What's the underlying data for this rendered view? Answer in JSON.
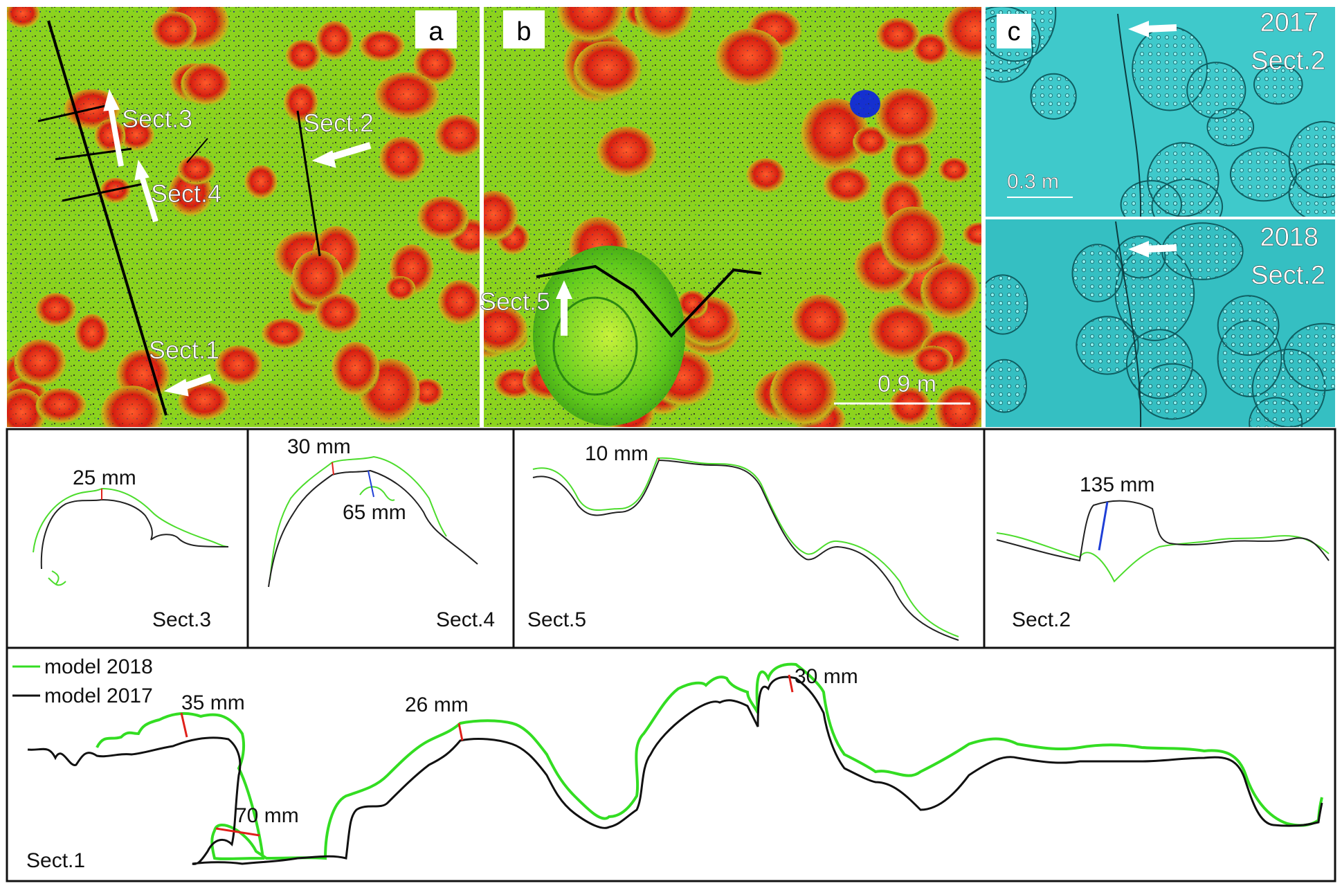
{
  "panels": {
    "a": {
      "letter": "a",
      "labels": [
        "Sect.3",
        "Sect.2",
        "Sect.4",
        "Sect.1"
      ]
    },
    "b": {
      "letter": "b",
      "labels": [
        "Sect.5"
      ],
      "scale": "0.9 m"
    },
    "c": {
      "letter": "c",
      "top_year": "2017",
      "top_section": "Sect.2",
      "bottom_year": "2018",
      "bottom_section": "Sect.2",
      "scale": "0.3 m"
    }
  },
  "profiles": {
    "sect3": {
      "label": "Sect.3",
      "measurements": [
        "25 mm"
      ]
    },
    "sect4": {
      "label": "Sect.4",
      "measurements": [
        "30 mm",
        "65 mm"
      ]
    },
    "sect5": {
      "label": "Sect.5",
      "measurements": [
        "10 mm"
      ]
    },
    "sect2": {
      "label": "Sect.2",
      "measurements": [
        "135 mm"
      ]
    },
    "sect1": {
      "label": "Sect.1",
      "measurements": [
        "35 mm",
        "26 mm",
        "70 mm",
        "30 mm"
      ]
    }
  },
  "legend": [
    {
      "label": "model 2018",
      "color": "#33dd22"
    },
    {
      "label": "model 2017",
      "color": "#111111"
    }
  ],
  "colors": {
    "model_2018": "#33dd22",
    "model_2017": "#111111",
    "measure_red": "#e0201a",
    "measure_blue": "#1f3fd6",
    "surface_red": "#dd2a14",
    "surface_yellow": "#e6d41c",
    "surface_green": "#6ed21e",
    "surface_cyan": "#33c7c9"
  }
}
